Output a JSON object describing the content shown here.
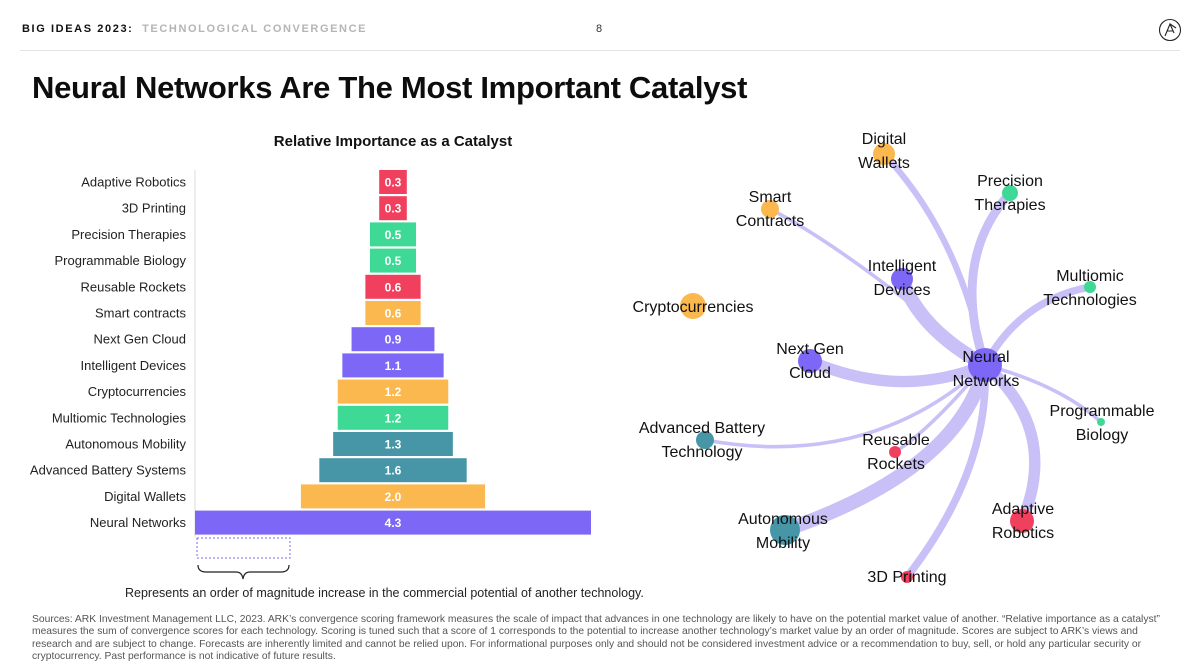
{
  "header": {
    "series": "BIG IDEAS 2023",
    "colon": ":",
    "subtitle": "TECHNOLOGICAL CONVERGENCE",
    "page_number": "8",
    "logo_icon": "ark-logo-icon"
  },
  "title": "Neural Networks Are The Most Important Catalyst",
  "colors": {
    "red": "#f0405e",
    "green": "#3fd996",
    "orange": "#fbb84e",
    "purple": "#7d67f6",
    "teal": "#4796a8",
    "edge": "#c9c0f7"
  },
  "chart_data": [
    {
      "type": "bar",
      "orientation": "horizontal-centered",
      "title": "Relative Importance as a Catalyst",
      "categories": [
        "Adaptive Robotics",
        "3D Printing",
        "Precision Therapies",
        "Programmable Biology",
        "Reusable Rockets",
        "Smart contracts",
        "Next Gen Cloud",
        "Intelligent Devices",
        "Cryptocurrencies",
        "Multiomic Technologies",
        "Autonomous Mobility",
        "Advanced Battery Systems",
        "Digital Wallets",
        "Neural Networks"
      ],
      "values": [
        0.3,
        0.3,
        0.5,
        0.5,
        0.6,
        0.6,
        0.9,
        1.1,
        1.2,
        1.2,
        1.3,
        1.6,
        2.0,
        4.3
      ],
      "value_labels": [
        "0.3",
        "0.3",
        "0.5",
        "0.5",
        "0.6",
        "0.6",
        "0.9",
        "1.1",
        "1.2",
        "1.2",
        "1.3",
        "1.6",
        "2.0",
        "4.3"
      ],
      "bar_colors": [
        "red",
        "red",
        "green",
        "green",
        "red",
        "orange",
        "purple",
        "purple",
        "orange",
        "green",
        "teal",
        "teal",
        "orange",
        "purple"
      ],
      "xlim": [
        0,
        4.3
      ],
      "legend": {
        "reference_value": 1.0,
        "text": "Represents an order of magnitude increase in the commercial potential of another technology."
      }
    },
    {
      "type": "network",
      "hub": "Neural Networks",
      "nodes": [
        {
          "id": "Digital Wallets",
          "label": [
            "Digital",
            "Wallets"
          ],
          "color": "orange",
          "weight": 2.0
        },
        {
          "id": "Precision Therapies",
          "label": [
            "Precision",
            "Therapies"
          ],
          "color": "green",
          "weight": 0.5
        },
        {
          "id": "Smart Contracts",
          "label": [
            "Smart",
            "Contracts"
          ],
          "color": "orange",
          "weight": 0.6
        },
        {
          "id": "Intelligent Devices",
          "label": [
            "Intelligent",
            "Devices"
          ],
          "color": "purple",
          "weight": 1.1
        },
        {
          "id": "Multiomic Technologies",
          "label": [
            "Multiomic",
            "Technologies"
          ],
          "color": "green",
          "weight": 1.2
        },
        {
          "id": "Cryptocurrencies",
          "label": [
            "Cryptocurrencies"
          ],
          "color": "orange",
          "weight": 1.2
        },
        {
          "id": "Next Gen Cloud",
          "label": [
            "Next Gen",
            "Cloud"
          ],
          "color": "purple",
          "weight": 0.9
        },
        {
          "id": "Neural Networks",
          "label": [
            "Neural",
            "Networks"
          ],
          "color": "purple",
          "weight": 4.3
        },
        {
          "id": "Programmable Biology",
          "label": [
            "Programmable",
            "Biology"
          ],
          "color": "green",
          "weight": 0.5
        },
        {
          "id": "Advanced Battery Technology",
          "label": [
            "Advanced Battery",
            "Technology"
          ],
          "color": "teal",
          "weight": 1.6
        },
        {
          "id": "Reusable Rockets",
          "label": [
            "Reusable",
            "Rockets"
          ],
          "color": "red",
          "weight": 0.6
        },
        {
          "id": "Adaptive Robotics",
          "label": [
            "Adaptive",
            "Robotics"
          ],
          "color": "red",
          "weight": 0.3
        },
        {
          "id": "Autonomous Mobility",
          "label": [
            "Autonomous",
            "Mobility"
          ],
          "color": "teal",
          "weight": 1.3
        },
        {
          "id": "3D Printing",
          "label": [
            "3D Printing"
          ],
          "color": "red",
          "weight": 0.3
        }
      ],
      "edges": [
        {
          "to": "Digital Wallets",
          "strength": 0.4
        },
        {
          "to": "Precision Therapies",
          "strength": 0.6
        },
        {
          "to": "Smart Contracts",
          "strength": 0.2
        },
        {
          "to": "Intelligent Devices",
          "strength": 1.0
        },
        {
          "to": "Multiomic Technologies",
          "strength": 0.5
        },
        {
          "to": "Next Gen Cloud",
          "strength": 0.8
        },
        {
          "to": "Programmable Biology",
          "strength": 0.2
        },
        {
          "to": "Advanced Battery Technology",
          "strength": 0.2
        },
        {
          "to": "Reusable Rockets",
          "strength": 0.2
        },
        {
          "to": "Adaptive Robotics",
          "strength": 0.8
        },
        {
          "to": "Autonomous Mobility",
          "strength": 1.0
        },
        {
          "to": "3D Printing",
          "strength": 0.5
        }
      ]
    }
  ],
  "footnote": "Sources: ARK Investment Management LLC, 2023. ARK’s convergence scoring framework measures the scale of impact that advances in one technology are likely to have on the potential market value of another. “Relative importance as a catalyst” measures the sum of convergence scores for each technology. Scoring is tuned such that a score of 1 corresponds to the potential to increase another technology’s market value by an order of magnitude. Scores are subject to ARK’s views and research and are subject to change. Forecasts are inherently limited and cannot be relied upon. For informational purposes only and should not be considered investment advice or a recommendation to buy, sell, or hold any particular security or cryptocurrency. Past performance is not indicative of future results."
}
